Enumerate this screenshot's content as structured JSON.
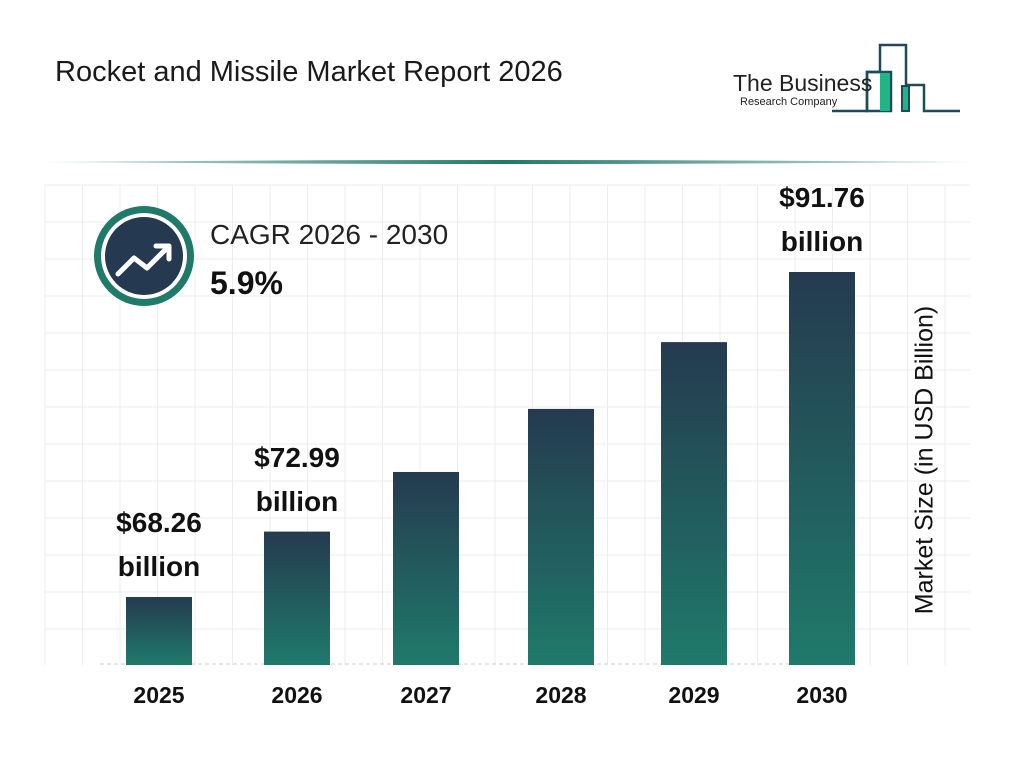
{
  "title": "Rocket and Missile Market Report 2026",
  "logo": {
    "line1": "The Business",
    "line2": "Research Company"
  },
  "cagr": {
    "label": "CAGR 2026 - 2030",
    "value": "5.9%",
    "icon": "trending-up-icon"
  },
  "colors": {
    "bar_top": "#253a50",
    "bar_bottom": "#1f7a6a",
    "accent": "#1f7a6a",
    "logo_green": "#1fb584",
    "grid": "#ececec"
  },
  "chart_data": {
    "type": "bar",
    "categories": [
      "2025",
      "2026",
      "2027",
      "2028",
      "2029",
      "2030"
    ],
    "values": [
      68.26,
      72.99,
      77.3,
      81.86,
      86.69,
      91.76
    ],
    "data_labels": [
      {
        "index": 0,
        "amount": "$68.26",
        "unit": "billion"
      },
      {
        "index": 1,
        "amount": "$72.99",
        "unit": "billion"
      },
      {
        "index": 5,
        "amount": "$91.76",
        "unit": "billion"
      }
    ],
    "title": "",
    "xlabel": "",
    "ylabel": "Market Size (in USD Billion)",
    "grid": true
  }
}
